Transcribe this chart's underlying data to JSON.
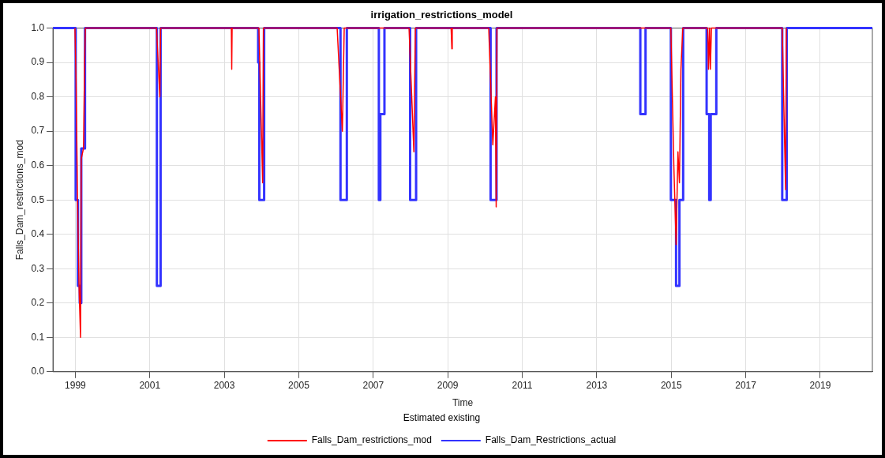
{
  "chart_data": {
    "type": "line",
    "title": "irrigation_restrictions_model",
    "xlabel": "Time",
    "ylabel": "Falls_Dam_restrictions_mod",
    "legend_title": "Estimated existing",
    "xlim": [
      1998.4,
      2020.4
    ],
    "xticks": [
      1999,
      2001,
      2003,
      2005,
      2007,
      2009,
      2011,
      2013,
      2015,
      2017,
      2019
    ],
    "ylim": [
      0,
      1
    ],
    "yticks": [
      {
        "value": 0,
        "label": "0.0"
      },
      {
        "value": 0.1,
        "label": "0.1"
      },
      {
        "value": 0.2,
        "label": "0.2"
      },
      {
        "value": 0.3,
        "label": "0.3"
      },
      {
        "value": 0.4,
        "label": "0.4"
      },
      {
        "value": 0.5,
        "label": "0.5"
      },
      {
        "value": 0.6,
        "label": "0.6"
      },
      {
        "value": 0.7,
        "label": "0.7"
      },
      {
        "value": 0.8,
        "label": "0.8"
      },
      {
        "value": 0.9,
        "label": "0.9"
      },
      {
        "value": 1,
        "label": "1.0"
      }
    ],
    "grid": true,
    "legend": "bottom",
    "marker": "none",
    "line_style": "solid",
    "series": [
      {
        "name": "Falls_Dam_restrictions_mod",
        "color": "#ff0000",
        "x": [
          1998.99,
          1999.02,
          1999.06,
          1999.1,
          1999.14,
          1999.16,
          1999.22,
          1999.25,
          1999.27,
          2001.18,
          2001.27,
          2001.29,
          2003.19,
          2003.2,
          2003.21,
          2003.93,
          2004.03,
          2004.05,
          2006.03,
          2006.17,
          2006.22,
          2007.96,
          2008.09,
          2008.13,
          2009.09,
          2009.11,
          2009.12,
          2010.1,
          2010.21,
          2010.28,
          2010.3,
          2010.32,
          2014.99,
          2015.07,
          2015.13,
          2015.18,
          2015.22,
          2015.26,
          2015.31,
          2015.98,
          2016.0,
          2016.03,
          2016.05,
          2016.08,
          2017.98,
          2018.07,
          2018.09
        ],
        "values": [
          1,
          0.85,
          0.5,
          0.25,
          0.1,
          0.62,
          0.65,
          0.9,
          1,
          1,
          0.8,
          1,
          1,
          0.88,
          1,
          1,
          0.55,
          1,
          1,
          0.7,
          1,
          1,
          0.64,
          1,
          1,
          0.94,
          1,
          1,
          0.66,
          0.8,
          0.48,
          1,
          1,
          0.6,
          0.37,
          0.64,
          0.55,
          0.88,
          1,
          1,
          0.88,
          1,
          0.88,
          1,
          1,
          0.53,
          1
        ]
      },
      {
        "name": "Falls_Dam_Restrictions_actual",
        "type": "step",
        "color": "#3333ff",
        "x": [
          1998.4,
          1999.01,
          1999.07,
          1999.12,
          1999.16,
          1999.26,
          2001.19,
          2001.29,
          2003.91,
          2003.94,
          2004.07,
          2006.12,
          2006.29,
          2007.15,
          2007.19,
          2007.3,
          2007.99,
          2008.15,
          2010.15,
          2010.31,
          2014.17,
          2014.31,
          2014.99,
          2015.13,
          2015.22,
          2015.32,
          2015.95,
          2016.02,
          2016.06,
          2016.21,
          2017.98,
          2018.1,
          2020.4
        ],
        "values": [
          1,
          0.5,
          0.25,
          0.2,
          0.65,
          1,
          0.25,
          1,
          0.9,
          0.5,
          1,
          0.5,
          1,
          0.5,
          0.75,
          1,
          0.5,
          1,
          0.5,
          1,
          0.75,
          1,
          0.5,
          0.25,
          0.5,
          1,
          0.75,
          0.5,
          0.75,
          1,
          0.5,
          1,
          1
        ]
      }
    ]
  }
}
